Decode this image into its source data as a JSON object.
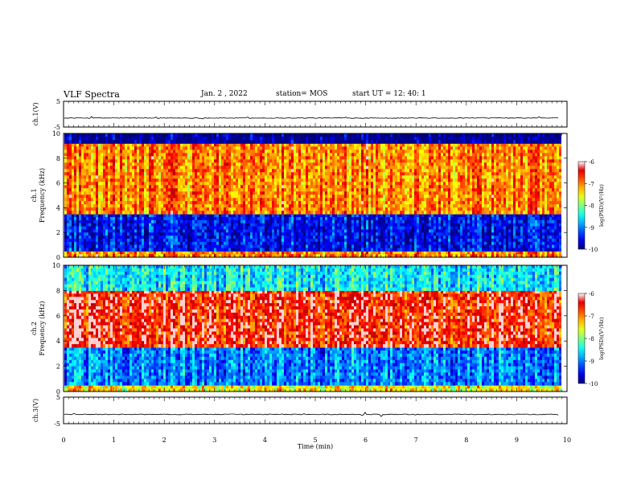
{
  "header": {
    "title": "VLF Spectra",
    "date": "Jan. 2 , 2022",
    "station": "station= MOS",
    "start": "start UT =  12: 40: 1"
  },
  "chart_data": [
    {
      "type": "line",
      "panel": "ch1-waveform",
      "ylabel": "ch.1(V)",
      "ylim": [
        -5,
        5
      ],
      "y_ticklabels": [
        "5",
        "-5"
      ],
      "baseline": -1.5
    },
    {
      "type": "heatmap",
      "panel": "ch1-spectrogram",
      "ylabel": "ch.1\nFrequency (kHz)",
      "ylim": [
        0,
        10
      ],
      "y_ticklabels": [
        "0",
        "2",
        "4",
        "6",
        "8",
        "10"
      ],
      "colorbar": {
        "label": "log(PSD)(V²/Hz)",
        "range": [
          -10,
          -6
        ],
        "ticklabels": [
          "-6",
          "-7",
          "-8",
          "-9",
          "-10"
        ]
      },
      "bands_khz": [
        {
          "from": 0.0,
          "to": 0.5,
          "level": "-7"
        },
        {
          "from": 0.5,
          "to": 3.5,
          "level": "-9.5"
        },
        {
          "from": 3.5,
          "to": 9.2,
          "level": "-7"
        },
        {
          "from": 9.2,
          "to": 10.0,
          "level": "-10"
        }
      ]
    },
    {
      "type": "heatmap",
      "panel": "ch2-spectrogram",
      "ylabel": "ch.2\nFrequency (kHz)",
      "ylim": [
        0,
        10
      ],
      "y_ticklabels": [
        "0",
        "2",
        "4",
        "6",
        "8",
        "10"
      ],
      "colorbar": {
        "label": "log(PSD)(V²/Hz)",
        "range": [
          -10,
          -6
        ],
        "ticklabels": [
          "-6",
          "-7",
          "-8",
          "-9",
          "-10"
        ]
      },
      "bands_khz": [
        {
          "from": 0.0,
          "to": 0.5,
          "level": "-7.5"
        },
        {
          "from": 0.5,
          "to": 3.5,
          "level": "-9"
        },
        {
          "from": 3.5,
          "to": 8.0,
          "level": "-6.5"
        },
        {
          "from": 8.0,
          "to": 10.0,
          "level": "-8.5"
        }
      ]
    },
    {
      "type": "line",
      "panel": "ch3-waveform",
      "ylabel": "ch.3(V)",
      "ylim": [
        -5,
        5
      ],
      "y_ticklabels": [
        "5",
        "-5"
      ],
      "baseline": -1.5
    }
  ],
  "x_axis": {
    "label": "Time (min)",
    "range": [
      0,
      10
    ],
    "ticklabels": [
      "0",
      "1",
      "2",
      "3",
      "4",
      "5",
      "6",
      "7",
      "8",
      "9",
      "10"
    ],
    "data_end": 9.85
  }
}
